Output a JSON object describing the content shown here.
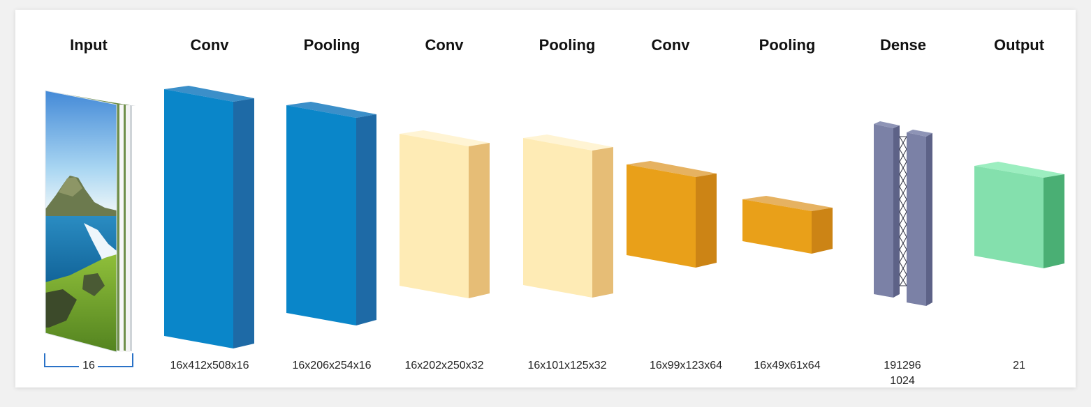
{
  "layers": [
    {
      "id": "input",
      "title": "Input",
      "dims": [
        "16"
      ]
    },
    {
      "id": "conv1",
      "title": "Conv",
      "dims": [
        "16x412x508x16"
      ]
    },
    {
      "id": "pool1",
      "title": "Pooling",
      "dims": [
        "16x206x254x16"
      ]
    },
    {
      "id": "conv2",
      "title": "Conv",
      "dims": [
        "16x202x250x32"
      ]
    },
    {
      "id": "pool2",
      "title": "Pooling",
      "dims": [
        "16x101x125x32"
      ]
    },
    {
      "id": "conv3",
      "title": "Conv",
      "dims": [
        "16x99x123x64"
      ]
    },
    {
      "id": "pool3",
      "title": "Pooling",
      "dims": [
        "16x49x61x64"
      ]
    },
    {
      "id": "dense",
      "title": "Dense",
      "dims": [
        "191296",
        "1024"
      ]
    },
    {
      "id": "output",
      "title": "Output",
      "dims": [
        "21"
      ]
    }
  ],
  "colors": {
    "blue": "#0a86c9",
    "blue_side": "#1e6aa6",
    "blue_top": "#3b8fc9",
    "cream": "#feebb5",
    "cream_side": "#e6bd76",
    "cream_top": "#fff4d4",
    "orange": "#e9a019",
    "orange_side": "#cc8415",
    "orange_top": "#e6b261",
    "slate": "#7b81a6",
    "slate_side": "#5d6287",
    "slate_top": "#8e94b6",
    "green": "#84e0ad",
    "green_side": "#4aaf74",
    "green_top": "#9ceec0",
    "bracket": "#2a72c7"
  }
}
